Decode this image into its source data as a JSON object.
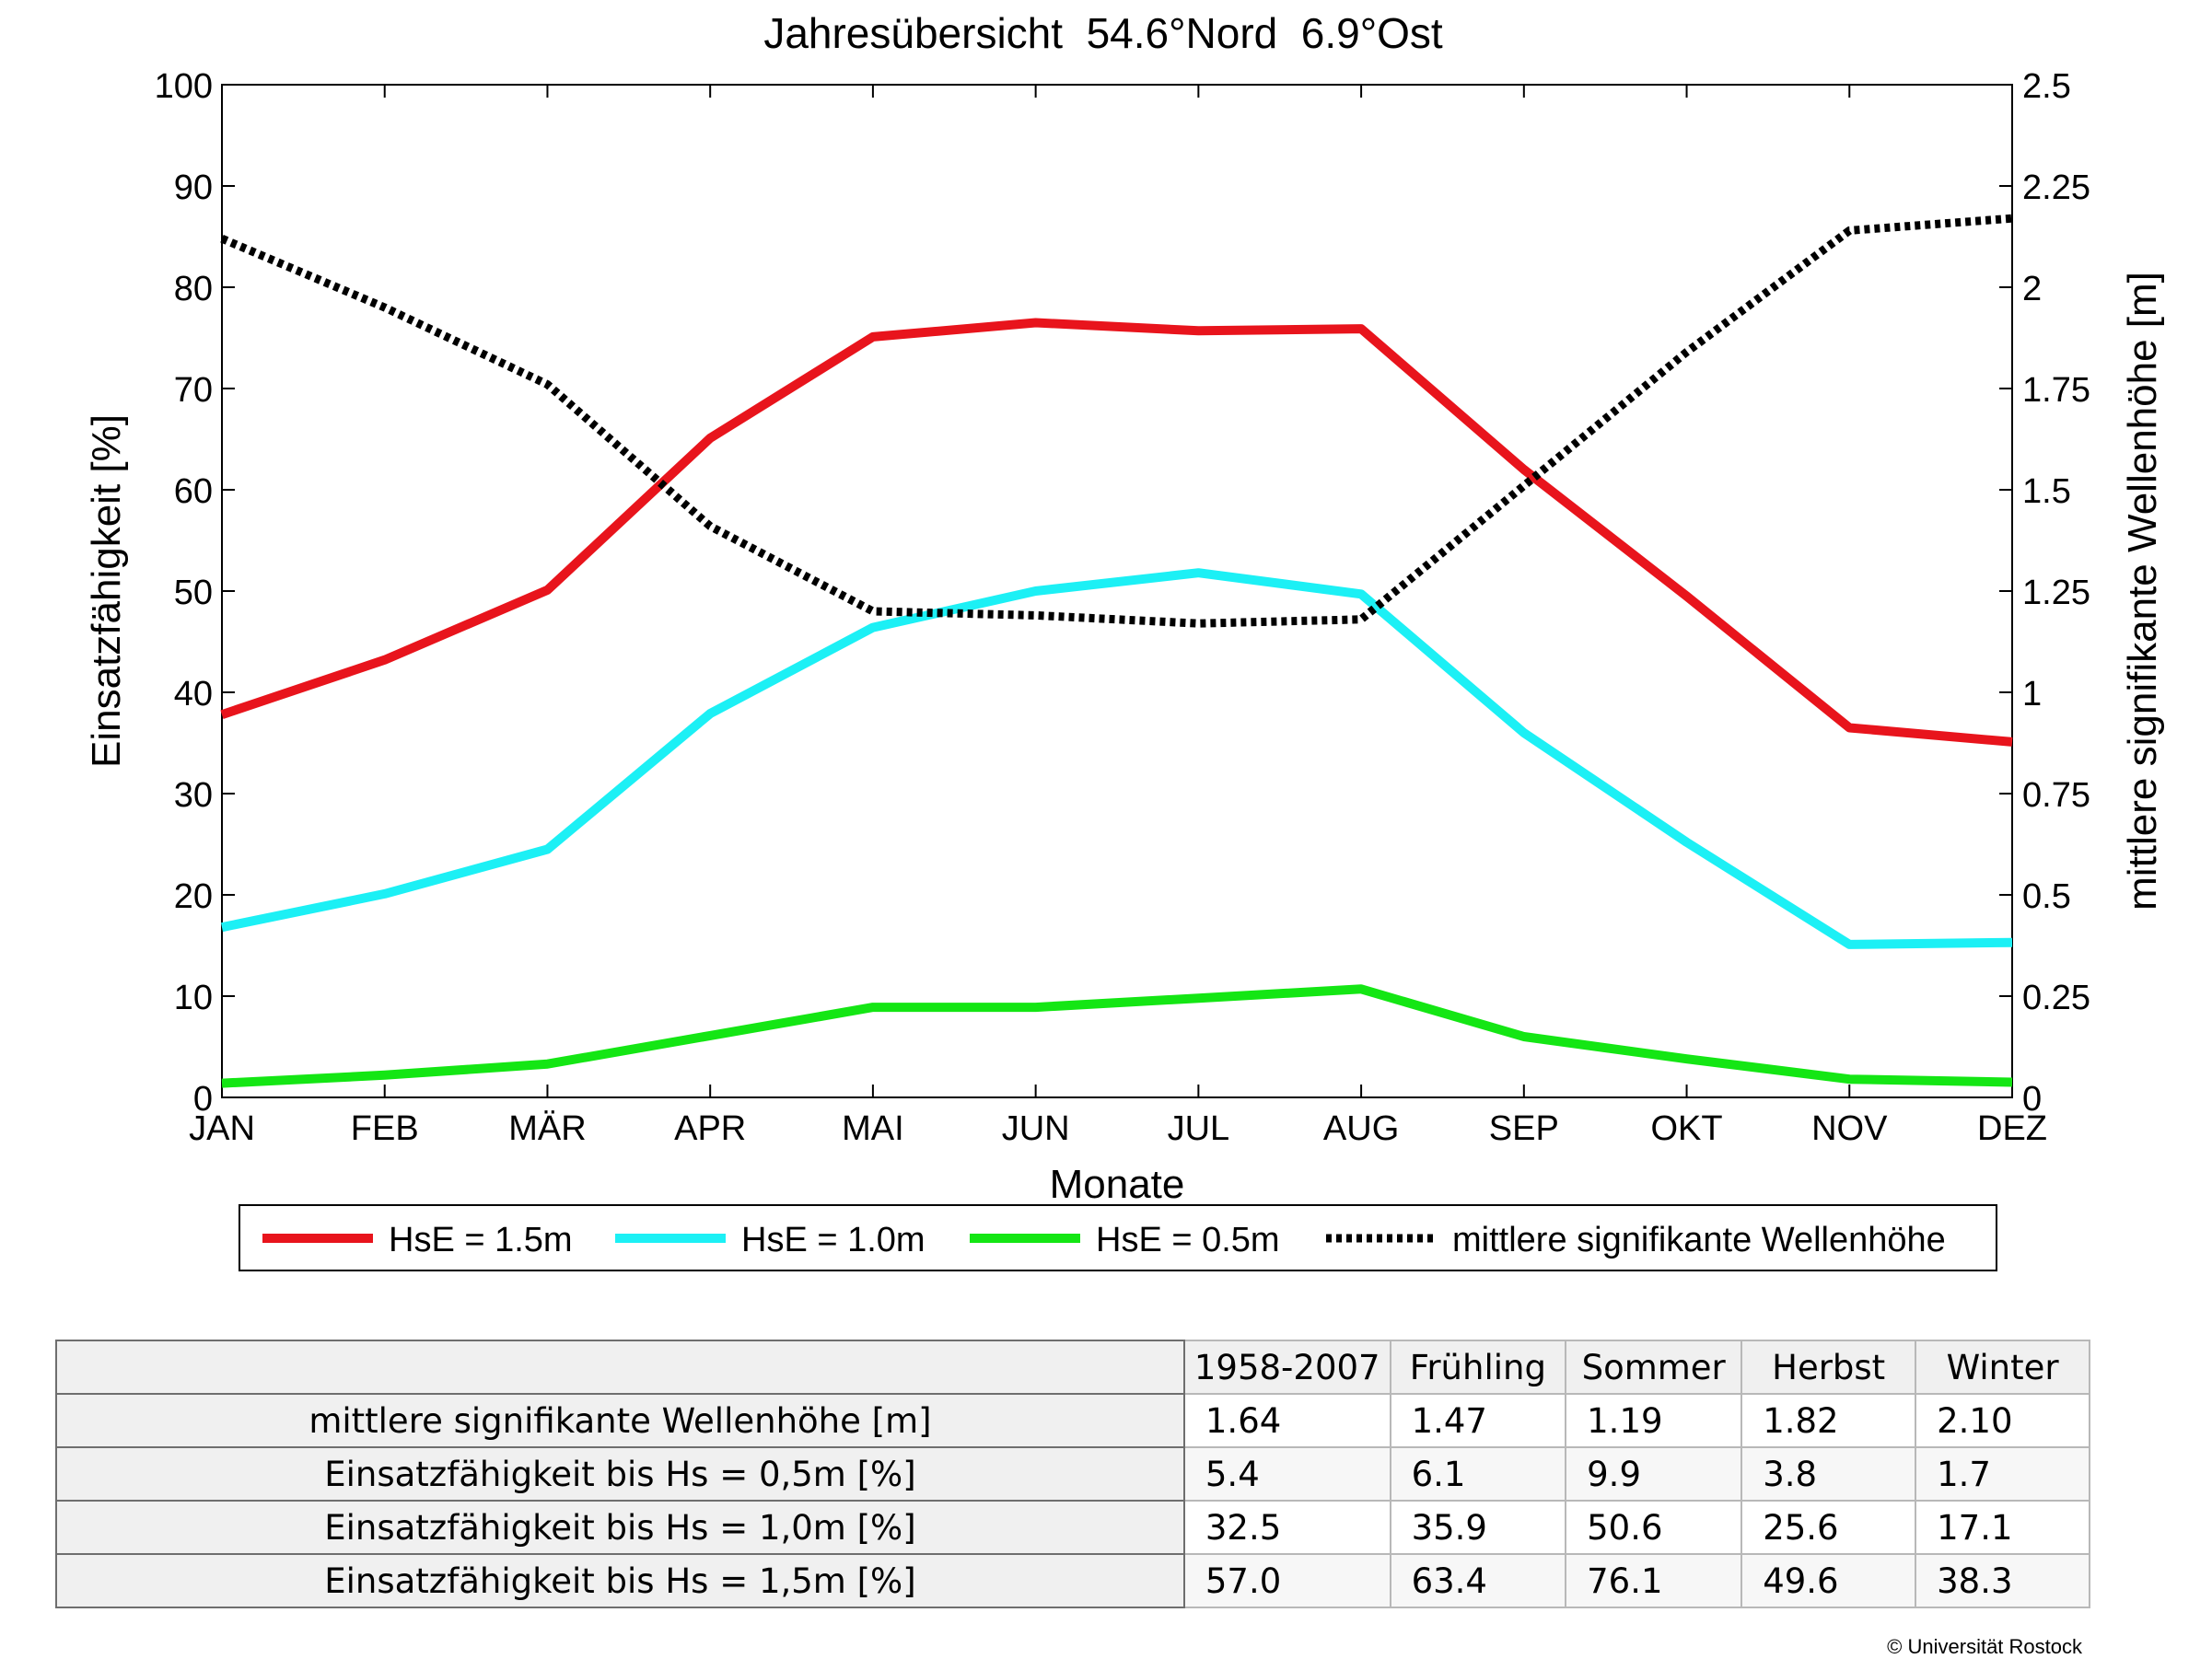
{
  "chart_data": {
    "type": "line",
    "title": "Jahresübersicht  54.6°Nord  6.9°Ost",
    "xlabel": "Monate",
    "ylabel_left": "Einsatzfähigkeit [%]",
    "ylabel_right": "mittlere signifikante Wellenhöhe [m]",
    "categories": [
      "JAN",
      "FEB",
      "MÄR",
      "APR",
      "MAI",
      "JUN",
      "JUL",
      "AUG",
      "SEP",
      "OKT",
      "NOV",
      "DEZ"
    ],
    "ylim_left": [
      0,
      100
    ],
    "yticks_left": [
      "0",
      "10",
      "20",
      "30",
      "40",
      "50",
      "60",
      "70",
      "80",
      "90",
      "100"
    ],
    "ylim_right": [
      0,
      2.5
    ],
    "yticks_right": [
      "0",
      "0.25",
      "0.5",
      "0.75",
      "1",
      "1.25",
      "1.5",
      "1.75",
      "2",
      "2.25",
      "2.5"
    ],
    "grid": false,
    "legend_position": "bottom",
    "series": [
      {
        "name": "HsE = 1.5m",
        "axis": "left",
        "color": "#e8141c",
        "style": "solid",
        "values": [
          37.8,
          43.2,
          50.1,
          65.1,
          75.1,
          76.5,
          75.7,
          75.9,
          62.0,
          49.5,
          36.5,
          35.1
        ]
      },
      {
        "name": "HsE = 1.0m",
        "axis": "left",
        "color": "#1cf0f5",
        "style": "solid",
        "values": [
          16.8,
          20.1,
          24.5,
          37.9,
          46.4,
          50.0,
          51.8,
          49.7,
          36.0,
          25.2,
          15.1,
          15.3
        ]
      },
      {
        "name": "HsE = 0.5m",
        "axis": "left",
        "color": "#14e614",
        "style": "solid",
        "values": [
          1.4,
          2.2,
          3.3,
          6.1,
          8.9,
          8.9,
          9.8,
          10.7,
          6.0,
          3.8,
          1.8,
          1.5
        ]
      },
      {
        "name": "mittlere signifikante Wellenhöhe",
        "axis": "right",
        "color": "#000000",
        "style": "dotted",
        "values": [
          2.12,
          1.95,
          1.76,
          1.41,
          1.2,
          1.19,
          1.17,
          1.18,
          1.51,
          1.84,
          2.14,
          2.17
        ]
      }
    ]
  },
  "table": {
    "headers": [
      "1958-2007",
      "Frühling",
      "Sommer",
      "Herbst",
      "Winter"
    ],
    "rows": [
      {
        "label": "mittlere signifikante Wellenhöhe [m]",
        "values": [
          "1.64",
          "1.47",
          "1.19",
          "1.82",
          "2.10"
        ]
      },
      {
        "label": "Einsatzfähigkeit bis Hs = 0,5m [%]",
        "values": [
          "5.4",
          "6.1",
          "9.9",
          "3.8",
          "1.7"
        ]
      },
      {
        "label": "Einsatzfähigkeit bis Hs = 1,0m [%]",
        "values": [
          "32.5",
          "35.9",
          "50.6",
          "25.6",
          "17.1"
        ]
      },
      {
        "label": "Einsatzfähigkeit bis Hs = 1,5m [%]",
        "values": [
          "57.0",
          "63.4",
          "76.1",
          "49.6",
          "38.3"
        ]
      }
    ]
  },
  "copyright": "© Universität Rostock"
}
